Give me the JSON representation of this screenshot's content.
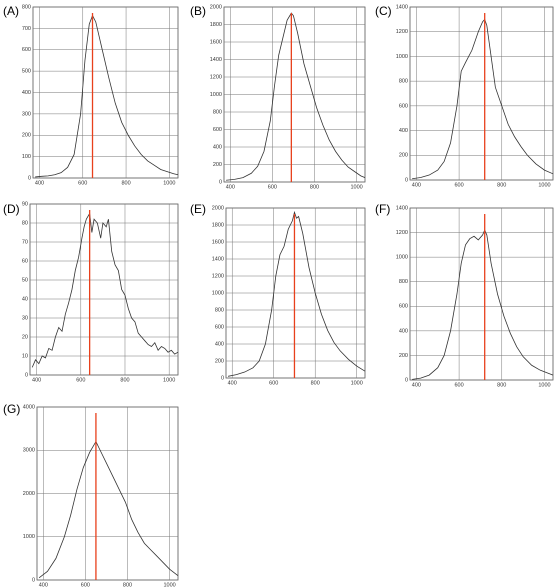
{
  "chart_data": [
    {
      "type": "line",
      "panel_label": "(A)",
      "x": [
        380,
        410,
        440,
        470,
        500,
        530,
        560,
        590,
        610,
        630,
        645,
        660,
        690,
        720,
        750,
        780,
        810,
        840,
        870,
        900,
        930,
        960,
        990,
        1020,
        1040
      ],
      "series": [
        {
          "color": "#333333",
          "values": [
            5,
            8,
            10,
            15,
            25,
            50,
            110,
            300,
            550,
            720,
            760,
            730,
            600,
            470,
            350,
            260,
            200,
            150,
            110,
            80,
            60,
            40,
            30,
            20,
            15
          ]
        }
      ],
      "xlim": [
        370,
        1040
      ],
      "ylim": [
        0,
        800
      ],
      "xticks": [
        400,
        600,
        800,
        1000
      ],
      "yticks": [
        0,
        100,
        200,
        300,
        400,
        500,
        600,
        700,
        800
      ],
      "grid": true,
      "vline": {
        "x": 645,
        "color": "#e8401c"
      }
    },
    {
      "type": "line",
      "panel_label": "(B)",
      "x": [
        380,
        420,
        460,
        500,
        530,
        560,
        590,
        610,
        630,
        650,
        670,
        690,
        700,
        720,
        750,
        780,
        810,
        840,
        870,
        900,
        930,
        960,
        990,
        1020,
        1040
      ],
      "series": [
        {
          "color": "#333333",
          "values": [
            20,
            30,
            50,
            100,
            180,
            350,
            700,
            1100,
            1450,
            1650,
            1850,
            1930,
            1900,
            1700,
            1350,
            1100,
            850,
            650,
            480,
            350,
            250,
            170,
            120,
            70,
            50
          ]
        }
      ],
      "xlim": [
        370,
        1040
      ],
      "ylim": [
        0,
        2000
      ],
      "xticks": [
        400,
        600,
        800,
        1000
      ],
      "yticks": [
        0,
        200,
        400,
        600,
        800,
        1000,
        1200,
        1400,
        1600,
        1800,
        2000
      ],
      "grid": true,
      "vline": {
        "x": 690,
        "color": "#e8401c"
      }
    },
    {
      "type": "line",
      "panel_label": "(C)",
      "x": [
        380,
        420,
        460,
        500,
        530,
        560,
        590,
        610,
        630,
        660,
        690,
        710,
        720,
        730,
        750,
        770,
        800,
        830,
        860,
        890,
        920,
        960,
        1000,
        1040
      ],
      "series": [
        {
          "color": "#333333",
          "values": [
            10,
            20,
            40,
            80,
            150,
            300,
            600,
            880,
            950,
            1050,
            1200,
            1280,
            1300,
            1250,
            1000,
            750,
            600,
            450,
            350,
            270,
            200,
            130,
            80,
            50
          ]
        }
      ],
      "xlim": [
        370,
        1040
      ],
      "ylim": [
        0,
        1400
      ],
      "xticks": [
        400,
        600,
        800,
        1000
      ],
      "yticks": [
        0,
        200,
        400,
        600,
        800,
        1000,
        1200,
        1400
      ],
      "grid": true,
      "vline": {
        "x": 720,
        "color": "#e8401c"
      }
    },
    {
      "type": "line",
      "panel_label": "(D)",
      "x": [
        380,
        395,
        410,
        425,
        440,
        455,
        470,
        485,
        500,
        515,
        530,
        545,
        560,
        575,
        590,
        605,
        615,
        625,
        640,
        650,
        660,
        675,
        690,
        700,
        715,
        725,
        740,
        755,
        770,
        785,
        800,
        815,
        830,
        845,
        860,
        875,
        890,
        905,
        920,
        935,
        950,
        965,
        980,
        995,
        1010,
        1025,
        1040
      ],
      "series": [
        {
          "color": "#333333",
          "values": [
            4,
            8,
            6,
            10,
            9,
            14,
            13,
            20,
            25,
            23,
            32,
            38,
            45,
            55,
            62,
            72,
            78,
            82,
            85,
            75,
            82,
            80,
            72,
            80,
            78,
            82,
            65,
            58,
            55,
            45,
            42,
            35,
            30,
            28,
            22,
            20,
            18,
            16,
            15,
            17,
            13,
            15,
            14,
            12,
            13,
            11,
            12
          ]
        }
      ],
      "xlim": [
        370,
        1040
      ],
      "ylim": [
        0,
        90
      ],
      "xticks": [
        400,
        600,
        800,
        1000
      ],
      "yticks": [
        0,
        10,
        20,
        30,
        40,
        50,
        60,
        70,
        80,
        90
      ],
      "grid": true,
      "vline": {
        "x": 640,
        "color": "#e8401c"
      }
    },
    {
      "type": "line",
      "panel_label": "(E)",
      "x": [
        380,
        420,
        460,
        500,
        530,
        560,
        590,
        610,
        630,
        650,
        670,
        690,
        700,
        710,
        720,
        740,
        770,
        800,
        830,
        860,
        890,
        920,
        960,
        1000,
        1040
      ],
      "series": [
        {
          "color": "#333333",
          "values": [
            20,
            40,
            70,
            120,
            200,
            400,
            800,
            1200,
            1450,
            1550,
            1750,
            1850,
            1950,
            1880,
            1900,
            1700,
            1300,
            1000,
            750,
            560,
            420,
            320,
            220,
            140,
            80
          ]
        }
      ],
      "xlim": [
        370,
        1040
      ],
      "ylim": [
        0,
        2000
      ],
      "xticks": [
        400,
        600,
        800,
        1000
      ],
      "yticks": [
        0,
        200,
        400,
        600,
        800,
        1000,
        1200,
        1400,
        1600,
        1800,
        2000
      ],
      "grid": true,
      "vline": {
        "x": 700,
        "color": "#e8401c"
      }
    },
    {
      "type": "line",
      "panel_label": "(F)",
      "x": [
        380,
        420,
        460,
        500,
        530,
        560,
        590,
        610,
        630,
        650,
        670,
        690,
        710,
        720,
        730,
        750,
        780,
        810,
        840,
        870,
        900,
        940,
        980,
        1040
      ],
      "series": [
        {
          "color": "#333333",
          "values": [
            5,
            15,
            40,
            100,
            200,
            400,
            700,
            950,
            1100,
            1150,
            1170,
            1140,
            1180,
            1220,
            1180,
            950,
            700,
            520,
            380,
            270,
            190,
            120,
            80,
            40
          ]
        }
      ],
      "xlim": [
        370,
        1040
      ],
      "ylim": [
        0,
        1400
      ],
      "xticks": [
        400,
        600,
        800,
        1000
      ],
      "yticks": [
        0,
        200,
        400,
        600,
        800,
        1000,
        1200,
        1400
      ],
      "grid": true,
      "vline": {
        "x": 720,
        "color": "#e8401c"
      }
    },
    {
      "type": "line",
      "panel_label": "(G)",
      "x": [
        380,
        420,
        460,
        500,
        530,
        560,
        590,
        620,
        650,
        670,
        700,
        730,
        760,
        790,
        820,
        850,
        880,
        910,
        940,
        970,
        1000,
        1040
      ],
      "series": [
        {
          "color": "#333333",
          "values": [
            50,
            200,
            500,
            1000,
            1500,
            2100,
            2600,
            2950,
            3200,
            3000,
            2700,
            2400,
            2100,
            1800,
            1400,
            1100,
            850,
            700,
            550,
            400,
            250,
            100
          ]
        }
      ],
      "xlim": [
        370,
        1040
      ],
      "ylim": [
        0,
        4000
      ],
      "xticks": [
        400,
        600,
        800,
        1000
      ],
      "yticks": [
        0,
        1000,
        2000,
        3000,
        4000
      ],
      "grid": true,
      "vline": {
        "x": 650,
        "color": "#e8401c"
      }
    }
  ]
}
